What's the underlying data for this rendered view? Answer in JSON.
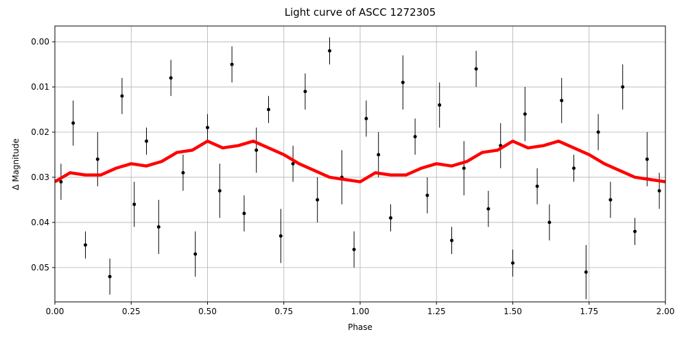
{
  "chart_data": {
    "type": "scatter",
    "title": "Light curve of ASCC 1272305",
    "x_label": "Phase",
    "y_label": "Δ Magnitude",
    "y_inverted": true,
    "grid": true,
    "xlim": [
      0,
      2
    ],
    "ylim": [
      -0.0035,
      0.0576
    ],
    "xticks": [
      {
        "value": 0,
        "label": "0.00"
      },
      {
        "value": 0.25,
        "label": "0.25"
      },
      {
        "value": 0.5,
        "label": "0.50"
      },
      {
        "value": 0.75,
        "label": "0.75"
      },
      {
        "value": 1,
        "label": "1.00"
      },
      {
        "value": 1.25,
        "label": "1.25"
      },
      {
        "value": 1.5,
        "label": "1.50"
      },
      {
        "value": 1.75,
        "label": "1.75"
      },
      {
        "value": 2,
        "label": "2.00"
      }
    ],
    "yticks": [
      {
        "value": 0,
        "label": "0.00"
      },
      {
        "value": 0.01,
        "label": "0.01"
      },
      {
        "value": 0.02,
        "label": "0.02"
      },
      {
        "value": 0.03,
        "label": "0.03"
      },
      {
        "value": 0.04,
        "label": "0.04"
      },
      {
        "value": 0.05,
        "label": "0.05"
      }
    ],
    "points": {
      "color": "#000000",
      "x": [
        0.02,
        0.06,
        0.1,
        0.14,
        0.18,
        0.22,
        0.26,
        0.3,
        0.34,
        0.38,
        0.42,
        0.46,
        0.5,
        0.54,
        0.58,
        0.62,
        0.66,
        0.7,
        0.74,
        0.78,
        0.82,
        0.86,
        0.9,
        0.94,
        0.98,
        1.02,
        1.06,
        1.1,
        1.14,
        1.18,
        1.22,
        1.26,
        1.3,
        1.34,
        1.38,
        1.42,
        1.46,
        1.5,
        1.54,
        1.58,
        1.62,
        1.66,
        1.7,
        1.74,
        1.78,
        1.82,
        1.86,
        1.9,
        1.94,
        1.98
      ],
      "values": [
        0.031,
        0.018,
        0.045,
        0.026,
        0.052,
        0.012,
        0.036,
        0.022,
        0.041,
        0.008,
        0.029,
        0.047,
        0.019,
        0.033,
        0.005,
        0.038,
        0.024,
        0.015,
        0.043,
        0.027,
        0.011,
        0.035,
        0.002,
        0.03,
        0.046,
        0.017,
        0.025,
        0.039,
        0.009,
        0.021,
        0.034,
        0.014,
        0.044,
        0.028,
        0.006,
        0.037,
        0.023,
        0.049,
        0.016,
        0.032,
        0.04,
        0.013,
        0.028,
        0.051,
        0.02,
        0.035,
        0.01,
        0.042,
        0.026,
        0.033
      ],
      "errors": [
        0.004,
        0.005,
        0.003,
        0.006,
        0.004,
        0.004,
        0.005,
        0.003,
        0.006,
        0.004,
        0.004,
        0.005,
        0.003,
        0.006,
        0.004,
        0.004,
        0.005,
        0.003,
        0.006,
        0.004,
        0.004,
        0.005,
        0.003,
        0.006,
        0.004,
        0.004,
        0.005,
        0.003,
        0.006,
        0.004,
        0.004,
        0.005,
        0.003,
        0.006,
        0.004,
        0.004,
        0.005,
        0.003,
        0.006,
        0.004,
        0.004,
        0.005,
        0.003,
        0.006,
        0.004,
        0.004,
        0.005,
        0.003,
        0.006,
        0.004
      ]
    },
    "curve": {
      "color": "#ff0000",
      "x": [
        0,
        0.05,
        0.1,
        0.15,
        0.2,
        0.25,
        0.3,
        0.35,
        0.4,
        0.45,
        0.5,
        0.55,
        0.6,
        0.65,
        0.7,
        0.75,
        0.8,
        0.85,
        0.9,
        0.95,
        1.0,
        1.05,
        1.1,
        1.15,
        1.2,
        1.25,
        1.3,
        1.35,
        1.4,
        1.45,
        1.5,
        1.55,
        1.6,
        1.65,
        1.7,
        1.75,
        1.8,
        1.85,
        1.9,
        1.95,
        2.0
      ],
      "values": [
        0.031,
        0.029,
        0.0295,
        0.0295,
        0.028,
        0.027,
        0.0275,
        0.0265,
        0.0245,
        0.024,
        0.022,
        0.0235,
        0.023,
        0.022,
        0.0235,
        0.025,
        0.027,
        0.0285,
        0.03,
        0.0305,
        0.031,
        0.029,
        0.0295,
        0.0295,
        0.028,
        0.027,
        0.0275,
        0.0265,
        0.0245,
        0.024,
        0.022,
        0.0235,
        0.023,
        0.022,
        0.0235,
        0.025,
        0.027,
        0.0285,
        0.03,
        0.0305,
        0.031
      ]
    }
  }
}
